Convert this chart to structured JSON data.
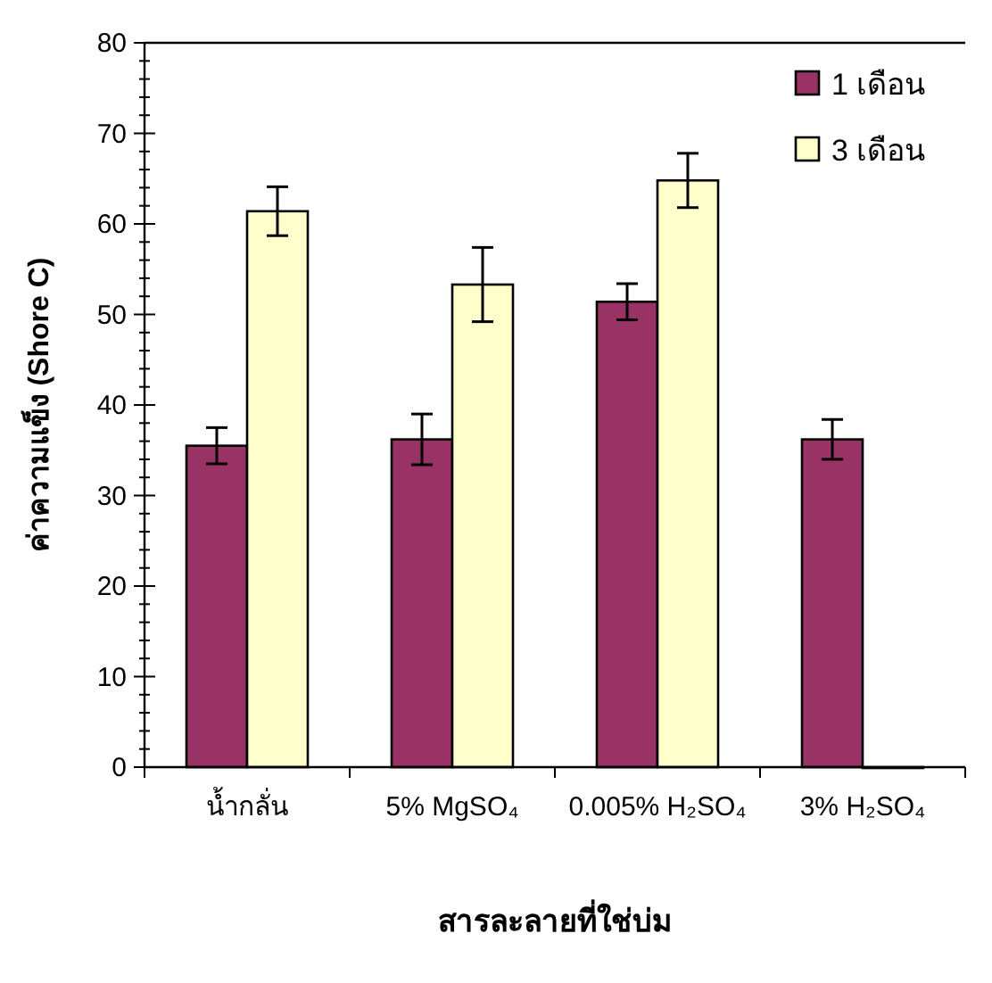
{
  "chart_data": {
    "type": "bar",
    "xlabel": "สารละลายที่ใช่บ่ม",
    "ylabel": "ค่าความแข็ง (Shore C)",
    "categories": [
      "น้ำกลั่น",
      "5% MgSO₄",
      "0.005% H₂SO₄",
      "3% H₂SO₄"
    ],
    "series": [
      {
        "name": "1 เดือน",
        "color": "#993366",
        "values": [
          35.5,
          36.2,
          51.4,
          36.2
        ],
        "errors": [
          2,
          2.8,
          2,
          2.2
        ]
      },
      {
        "name": "3 เดือน",
        "color": "#ffffcc",
        "values": [
          61.4,
          53.3,
          64.8,
          0
        ],
        "errors": [
          2.7,
          4.1,
          3,
          null
        ]
      }
    ],
    "ylim": [
      0,
      80
    ],
    "yticks": [
      0,
      {
        "value": 2,
        "label": null
      },
      {
        "value": 4,
        "label": null
      },
      {
        "value": 6,
        "label": null
      },
      {
        "value": 8,
        "label": null
      },
      10,
      {
        "value": 12,
        "label": null
      },
      {
        "value": 14,
        "label": null
      },
      {
        "value": 16,
        "label": null
      },
      {
        "value": 18,
        "label": null
      },
      20,
      {
        "value": 22,
        "label": null
      },
      {
        "value": 24,
        "label": null
      },
      {
        "value": 26,
        "label": null
      },
      {
        "value": 28,
        "label": null
      },
      30,
      {
        "value": 32,
        "label": null
      },
      {
        "value": 34,
        "label": null
      },
      {
        "value": 36,
        "label": null
      },
      {
        "value": 38,
        "label": null
      },
      40,
      {
        "value": 42,
        "label": null
      },
      {
        "value": 44,
        "label": null
      },
      {
        "value": 46,
        "label": null
      },
      {
        "value": 48,
        "label": null
      },
      50,
      {
        "value": 52,
        "label": null
      },
      {
        "value": 54,
        "label": null
      },
      {
        "value": 56,
        "label": null
      },
      {
        "value": 58,
        "label": null
      },
      60,
      {
        "value": 62,
        "label": null
      },
      {
        "value": 64,
        "label": null
      },
      {
        "value": 66,
        "label": null
      },
      {
        "value": 68,
        "label": null
      },
      70,
      {
        "value": 72,
        "label": null
      },
      {
        "value": 74,
        "label": null
      },
      {
        "value": 76,
        "label": null
      },
      {
        "value": 78,
        "label": null
      },
      80
    ],
    "grid": false,
    "legend": "top right"
  }
}
